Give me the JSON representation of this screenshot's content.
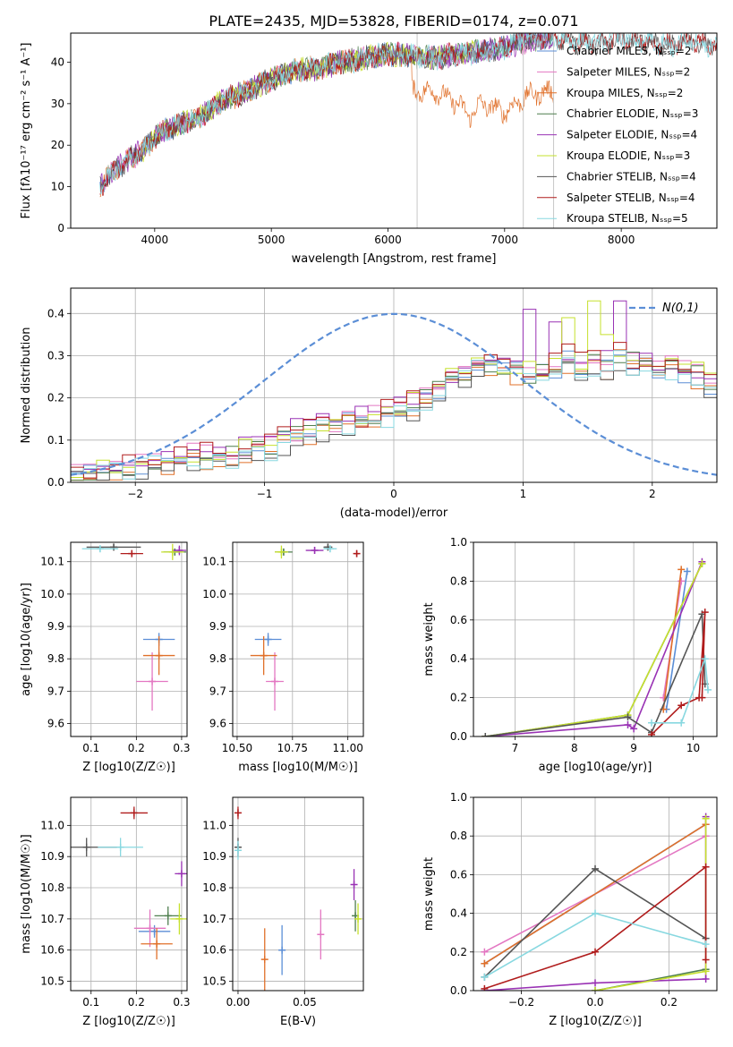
{
  "figure_title": "PLATE=2435, MJD=53828, FIBERID=0174, z=0.071",
  "chart_data": [
    {
      "id": "spectrum",
      "type": "line",
      "xlabel": "wavelength [Angstrom, rest frame]",
      "ylabel": "Flux [fλ10⁻¹⁷ erg cm⁻² s⁻¹ A⁻¹]",
      "xlim": [
        3280,
        8820
      ],
      "ylim": [
        0,
        47
      ],
      "xticks": [
        4000,
        5000,
        6000,
        7000,
        8000
      ],
      "yticks": [
        0,
        10,
        20,
        30,
        40
      ],
      "grid": false,
      "legend_position": "top-right",
      "series": [
        {
          "name": "Chabrier MILES, N_SSP=2",
          "color": "#5b8ed6"
        },
        {
          "name": "Salpeter MILES, N_SSP=2",
          "color": "#e377c2"
        },
        {
          "name": "Kroupa MILES, N_SSP=2",
          "color": "#e0702a"
        },
        {
          "name": "Chabrier ELODIE, N_SSP=3",
          "color": "#4f7f4f"
        },
        {
          "name": "Salpeter ELODIE, N_SSP=4",
          "color": "#9932b4"
        },
        {
          "name": "Kroupa ELODIE, N_SSP=3",
          "color": "#c6e02e"
        },
        {
          "name": "Chabrier STELIB, N_SSP=4",
          "color": "#555555"
        },
        {
          "name": "Salpeter STELIB, N_SSP=4",
          "color": "#b01c1c"
        },
        {
          "name": "Kroupa STELIB, N_SSP=5",
          "color": "#88d8e0"
        }
      ],
      "continuum": {
        "x": [
          3530,
          3700,
          3900,
          4050,
          4200,
          4400,
          4600,
          4800,
          5000,
          5200,
          5400,
          5600,
          5800,
          6000,
          6200,
          6400,
          6600,
          6800,
          7000,
          7200,
          7400
        ],
        "y": [
          10,
          15,
          19,
          23,
          25,
          27,
          31,
          33,
          36,
          38,
          38.5,
          40,
          41,
          42,
          41.5,
          41,
          42,
          42.5,
          43.5,
          45,
          46
        ]
      },
      "kroupa_miles_tail": {
        "x": [
          6200,
          6400,
          6600,
          6700,
          6800,
          7000,
          7200,
          7400
        ],
        "y": [
          33,
          33,
          30,
          27,
          30,
          28,
          32,
          33
        ]
      },
      "elodie_tail": {
        "x": [
          6200,
          6400,
          6600,
          6750
        ],
        "y": [
          45,
          44,
          43,
          43
        ]
      },
      "stelib_tail": {
        "x": [
          7000,
          7200,
          7400,
          7600,
          7800,
          8000,
          8200,
          8400,
          8600,
          8820
        ],
        "y": [
          44,
          46,
          46,
          45,
          44.5,
          46,
          45,
          44,
          45,
          44
        ]
      },
      "masked_wavelengths": [
        6250,
        7160,
        7420
      ]
    },
    {
      "id": "residuals",
      "type": "line",
      "xlabel": "(data-model)/error",
      "ylabel": "Normed distribution",
      "xlim": [
        -2.5,
        2.5
      ],
      "ylim": [
        0,
        0.46
      ],
      "xticks": [
        -2,
        -1,
        0,
        1,
        2
      ],
      "yticks": [
        0.0,
        0.1,
        0.2,
        0.3,
        0.4
      ],
      "grid": true,
      "legend_position": "top-right",
      "gaussian": {
        "name": "N(0,1)",
        "color": "#5b8ed6",
        "mean": 0,
        "sigma": 1
      },
      "hist_bin_edges": [
        -2.5,
        -2.4,
        -2.3,
        -2.2,
        -2.1,
        -2.0,
        -1.9,
        -1.8,
        -1.7,
        -1.6,
        -1.5,
        -1.4,
        -1.3,
        -1.2,
        -1.1,
        -1.0,
        -0.9,
        -0.8,
        -0.7,
        -0.6,
        -0.5,
        -0.4,
        -0.3,
        -0.2,
        -0.1,
        0.0,
        0.1,
        0.2,
        0.3,
        0.4,
        0.5,
        0.6,
        0.7,
        0.8,
        0.9,
        1.0,
        1.1,
        1.2,
        1.3,
        1.4,
        1.5,
        1.6,
        1.7,
        1.8,
        1.9,
        2.0,
        2.1,
        2.2,
        2.3,
        2.4,
        2.5
      ],
      "hist_base": [
        0.02,
        0.02,
        0.03,
        0.03,
        0.03,
        0.04,
        0.05,
        0.05,
        0.05,
        0.06,
        0.06,
        0.06,
        0.06,
        0.07,
        0.08,
        0.08,
        0.1,
        0.11,
        0.12,
        0.13,
        0.13,
        0.14,
        0.14,
        0.15,
        0.16,
        0.17,
        0.18,
        0.19,
        0.21,
        0.24,
        0.26,
        0.27,
        0.28,
        0.27,
        0.26,
        0.25,
        0.26,
        0.27,
        0.29,
        0.27,
        0.28,
        0.27,
        0.3,
        0.28,
        0.28,
        0.27,
        0.27,
        0.26,
        0.25,
        0.23
      ],
      "hist_offsets": [
        0.0,
        0.01,
        -0.01,
        0.005,
        0.02,
        0.012,
        -0.012,
        0.015,
        -0.005
      ],
      "hist_peaks": {
        "4": [
          [
            1.0,
            0.41
          ],
          [
            1.2,
            0.38
          ],
          [
            1.7,
            0.43
          ]
        ],
        "5": [
          [
            1.5,
            0.43
          ],
          [
            1.3,
            0.39
          ],
          [
            1.6,
            0.35
          ]
        ]
      }
    },
    {
      "id": "age_vs_Z",
      "type": "scatter",
      "xlabel": "Z [log10(Z/Z☉)]",
      "ylabel": "age  [log10(age/yr)]",
      "xlim": [
        0.055,
        0.312
      ],
      "ylim": [
        9.56,
        10.16
      ],
      "xticks": [
        0.1,
        0.2,
        0.3
      ],
      "yticks": [
        9.6,
        9.7,
        9.8,
        9.9,
        10.0,
        10.1
      ],
      "grid": true,
      "points": [
        {
          "s": 0,
          "x": 0.25,
          "y": 9.86,
          "ex": 0.035,
          "ey": 0.02
        },
        {
          "s": 1,
          "x": 0.235,
          "y": 9.73,
          "ex": 0.035,
          "ey": 0.09
        },
        {
          "s": 2,
          "x": 0.25,
          "y": 9.81,
          "ex": 0.035,
          "ey": 0.06
        },
        {
          "s": 3,
          "x": 0.285,
          "y": 10.13,
          "ex": 0.025,
          "ey": 0.01
        },
        {
          "s": 4,
          "x": 0.295,
          "y": 10.135,
          "ex": 0.015,
          "ey": 0.015
        },
        {
          "s": 5,
          "x": 0.28,
          "y": 10.13,
          "ex": 0.025,
          "ey": 0.025
        },
        {
          "s": 6,
          "x": 0.15,
          "y": 10.145,
          "ex": 0.06,
          "ey": 0.01
        },
        {
          "s": 7,
          "x": 0.19,
          "y": 10.125,
          "ex": 0.025,
          "ey": 0.01
        },
        {
          "s": 8,
          "x": 0.12,
          "y": 10.14,
          "ex": 0.04,
          "ey": 0.01
        }
      ]
    },
    {
      "id": "age_vs_mass",
      "type": "scatter",
      "xlabel": "mass [log10(M/M☉)]",
      "ylabel": "",
      "xlim": [
        10.48,
        11.07
      ],
      "ylim": [
        9.56,
        10.16
      ],
      "xticks": [
        10.5,
        10.75,
        11.0
      ],
      "yticks": [
        9.6,
        9.7,
        9.8,
        9.9,
        10.0,
        10.1
      ],
      "grid": true,
      "points": [
        {
          "s": 0,
          "x": 10.64,
          "y": 9.86,
          "ex": 0.06,
          "ey": 0.02
        },
        {
          "s": 1,
          "x": 10.67,
          "y": 9.73,
          "ex": 0.04,
          "ey": 0.09
        },
        {
          "s": 2,
          "x": 10.62,
          "y": 9.81,
          "ex": 0.06,
          "ey": 0.06
        },
        {
          "s": 3,
          "x": 10.71,
          "y": 10.13,
          "ex": 0.04,
          "ey": 0.01
        },
        {
          "s": 4,
          "x": 10.85,
          "y": 10.135,
          "ex": 0.04,
          "ey": 0.01
        },
        {
          "s": 5,
          "x": 10.7,
          "y": 10.13,
          "ex": 0.03,
          "ey": 0.02
        },
        {
          "s": 6,
          "x": 10.91,
          "y": 10.145,
          "ex": 0.02,
          "ey": 0.01
        },
        {
          "s": 7,
          "x": 11.04,
          "y": 10.125,
          "ex": 0.01,
          "ey": 0.01
        },
        {
          "s": 8,
          "x": 10.92,
          "y": 10.14,
          "ex": 0.03,
          "ey": 0.01
        }
      ]
    },
    {
      "id": "mass_weight_vs_age",
      "type": "line",
      "xlabel": "age  [log10(age/yr)]",
      "ylabel": "mass weight",
      "xlim": [
        6.3,
        10.4
      ],
      "ylim": [
        0,
        1
      ],
      "xticks": [
        7,
        8,
        9,
        10
      ],
      "yticks": [
        0.0,
        0.2,
        0.4,
        0.6,
        0.8,
        1.0
      ],
      "grid": true,
      "series": [
        {
          "s": 0,
          "x": [
            9.55,
            9.9
          ],
          "y": [
            0.14,
            0.85
          ]
        },
        {
          "s": 1,
          "x": [
            9.5,
            9.8
          ],
          "y": [
            0.2,
            0.8
          ]
        },
        {
          "s": 2,
          "x": [
            9.5,
            9.8
          ],
          "y": [
            0.14,
            0.86
          ]
        },
        {
          "s": 3,
          "x": [
            6.5,
            8.9,
            10.15
          ],
          "y": [
            0.0,
            0.11,
            0.89
          ]
        },
        {
          "s": 4,
          "x": [
            6.5,
            8.9,
            9.0,
            10.15
          ],
          "y": [
            0.0,
            0.06,
            0.04,
            0.9
          ]
        },
        {
          "s": 5,
          "x": [
            6.5,
            8.9,
            10.15
          ],
          "y": [
            0.0,
            0.11,
            0.89
          ]
        },
        {
          "s": 6,
          "x": [
            6.5,
            8.9,
            9.3,
            10.15,
            10.2
          ],
          "y": [
            0.0,
            0.1,
            0.02,
            0.63,
            0.27
          ]
        },
        {
          "s": 7,
          "x": [
            9.3,
            9.8,
            10.1,
            10.2,
            10.15
          ],
          "y": [
            0.01,
            0.16,
            0.2,
            0.64,
            0.2
          ]
        },
        {
          "s": 8,
          "x": [
            9.3,
            9.8,
            10.2,
            10.25
          ],
          "y": [
            0.07,
            0.07,
            0.4,
            0.24
          ]
        }
      ]
    },
    {
      "id": "mass_vs_Z",
      "type": "scatter",
      "xlabel": "Z [log10(Z/Z☉)]",
      "ylabel": "mass [log10(M/M☉)]",
      "xlim": [
        0.055,
        0.312
      ],
      "ylim": [
        10.47,
        11.09
      ],
      "xticks": [
        0.1,
        0.2,
        0.3
      ],
      "yticks": [
        10.5,
        10.6,
        10.7,
        10.8,
        10.9,
        11.0
      ],
      "grid": true,
      "points": [
        {
          "s": 0,
          "x": 0.24,
          "y": 10.66,
          "ex": 0.035,
          "ey": 0.02
        },
        {
          "s": 1,
          "x": 0.23,
          "y": 10.67,
          "ex": 0.035,
          "ey": 0.06
        },
        {
          "s": 2,
          "x": 0.245,
          "y": 10.62,
          "ex": 0.035,
          "ey": 0.05
        },
        {
          "s": 3,
          "x": 0.27,
          "y": 10.71,
          "ex": 0.03,
          "ey": 0.03
        },
        {
          "s": 4,
          "x": 0.3,
          "y": 10.845,
          "ex": 0.015,
          "ey": 0.04
        },
        {
          "s": 5,
          "x": 0.295,
          "y": 10.7,
          "ex": 0.02,
          "ey": 0.05
        },
        {
          "s": 6,
          "x": 0.09,
          "y": 10.93,
          "ex": 0.07,
          "ey": 0.03
        },
        {
          "s": 7,
          "x": 0.195,
          "y": 11.04,
          "ex": 0.03,
          "ey": 0.02
        },
        {
          "s": 8,
          "x": 0.165,
          "y": 10.93,
          "ex": 0.05,
          "ey": 0.03
        }
      ]
    },
    {
      "id": "mass_vs_ebv",
      "type": "scatter",
      "xlabel": "E(B-V)",
      "ylabel": "",
      "xlim": [
        -0.004,
        0.094
      ],
      "ylim": [
        10.47,
        11.09
      ],
      "xticks": [
        0.0,
        0.05
      ],
      "yticks": [
        10.5,
        10.6,
        10.7,
        10.8,
        10.9,
        11.0
      ],
      "grid": true,
      "points": [
        {
          "s": 0,
          "x": 0.033,
          "y": 10.6,
          "ey": 0.08
        },
        {
          "s": 1,
          "x": 0.062,
          "y": 10.65,
          "ey": 0.08
        },
        {
          "s": 2,
          "x": 0.02,
          "y": 10.57,
          "ey": 0.1
        },
        {
          "s": 3,
          "x": 0.088,
          "y": 10.71,
          "ey": 0.05
        },
        {
          "s": 4,
          "x": 0.087,
          "y": 10.81,
          "ey": 0.05
        },
        {
          "s": 5,
          "x": 0.09,
          "y": 10.7,
          "ey": 0.05
        },
        {
          "s": 6,
          "x": 0.0,
          "y": 10.93,
          "ey": 0.03
        },
        {
          "s": 7,
          "x": 0.0,
          "y": 11.04,
          "ey": 0.02
        },
        {
          "s": 8,
          "x": 0.0,
          "y": 10.92,
          "ey": 0.03
        }
      ]
    },
    {
      "id": "mass_weight_vs_Z",
      "type": "line",
      "xlabel": "Z [log10(Z/Z☉)]",
      "ylabel": "mass weight",
      "xlim": [
        -0.33,
        0.33
      ],
      "ylim": [
        0,
        1
      ],
      "xticks": [
        -0.2,
        0.0,
        0.2
      ],
      "yticks": [
        0.0,
        0.2,
        0.4,
        0.6,
        0.8,
        1.0
      ],
      "grid": true,
      "series": [
        {
          "s": 0,
          "x": [
            -0.3,
            0.3
          ],
          "y": [
            0.14,
            0.86
          ]
        },
        {
          "s": 1,
          "x": [
            -0.3,
            0.3
          ],
          "y": [
            0.2,
            0.8
          ]
        },
        {
          "s": 2,
          "x": [
            -0.3,
            0.3
          ],
          "y": [
            0.14,
            0.86
          ]
        },
        {
          "s": 3,
          "x": [
            0.0,
            0.3
          ],
          "y": [
            0.0,
            0.11
          ]
        },
        {
          "s": 4,
          "x": [
            -0.3,
            0.0,
            0.3,
            0.3
          ],
          "y": [
            0.0,
            0.04,
            0.06,
            0.9
          ]
        },
        {
          "s": 5,
          "x": [
            0.0,
            0.3,
            0.3
          ],
          "y": [
            0.0,
            0.1,
            0.89
          ]
        },
        {
          "s": 6,
          "x": [
            -0.3,
            0.0,
            0.3
          ],
          "y": [
            0.07,
            0.63,
            0.27
          ]
        },
        {
          "s": 7,
          "x": [
            -0.3,
            0.0,
            0.3,
            0.3
          ],
          "y": [
            0.01,
            0.2,
            0.64,
            0.16
          ]
        },
        {
          "s": 8,
          "x": [
            -0.3,
            0.0,
            0.3
          ],
          "y": [
            0.07,
            0.4,
            0.24
          ]
        }
      ]
    }
  ]
}
